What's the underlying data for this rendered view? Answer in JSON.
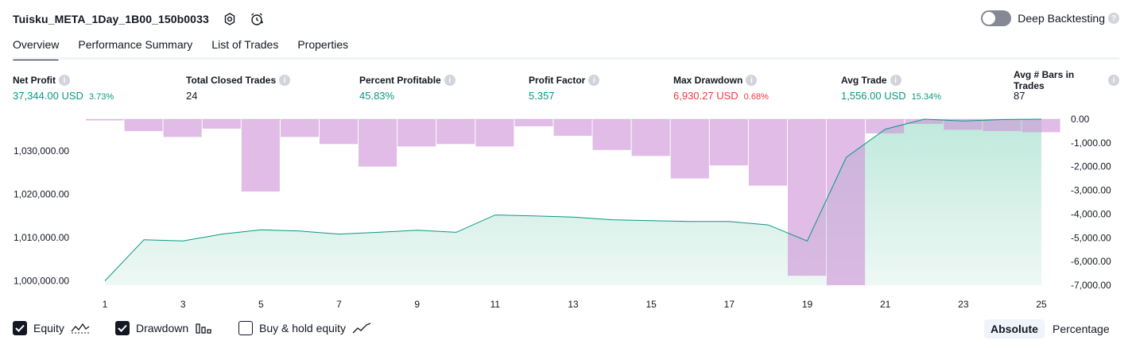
{
  "header": {
    "title": "Tuisku_META_1Day_1B00_150b0033",
    "deep_backtesting_label": "Deep Backtesting",
    "deep_backtesting_on": false
  },
  "tabs": [
    {
      "label": "Overview",
      "active": true
    },
    {
      "label": "Performance Summary",
      "active": false
    },
    {
      "label": "List of Trades",
      "active": false
    },
    {
      "label": "Properties",
      "active": false
    }
  ],
  "metrics": [
    {
      "label": "Net Profit",
      "value": "37,344.00 USD",
      "sub": "3.73%",
      "tone": "pos"
    },
    {
      "label": "Total Closed Trades",
      "value": "24",
      "sub": "",
      "tone": "neutral"
    },
    {
      "label": "Percent Profitable",
      "value": "45.83%",
      "sub": "",
      "tone": "pos"
    },
    {
      "label": "Profit Factor",
      "value": "5.357",
      "sub": "",
      "tone": "pos"
    },
    {
      "label": "Max Drawdown",
      "value": "6,930.27 USD",
      "sub": "0.68%",
      "tone": "neg"
    },
    {
      "label": "Avg Trade",
      "value": "1,556.00 USD",
      "sub": "15.34%",
      "tone": "pos"
    },
    {
      "label": "Avg # Bars in Trades",
      "value": "87",
      "sub": "",
      "tone": "neutral"
    }
  ],
  "chart_data": {
    "type": "area",
    "x": [
      1,
      2,
      3,
      4,
      5,
      6,
      7,
      8,
      9,
      10,
      11,
      12,
      13,
      14,
      15,
      16,
      17,
      18,
      19,
      20,
      21,
      22,
      23,
      24,
      25
    ],
    "x_tick_labels": [
      "1",
      "3",
      "5",
      "7",
      "9",
      "11",
      "13",
      "15",
      "17",
      "19",
      "21",
      "23",
      "25"
    ],
    "series": [
      {
        "axis": "left",
        "type": "area",
        "values": [
          1000000,
          1009500,
          1009200,
          1010800,
          1011800,
          1011500,
          1010800,
          1011200,
          1011700,
          1011200,
          1015200,
          1015000,
          1014700,
          1014100,
          1013900,
          1013700,
          1013700,
          1012900,
          1009200,
          1028500,
          1035000,
          1037300,
          1036900,
          1037200,
          1037300
        ],
        "color": "#089981"
      },
      {
        "axis": "right",
        "type": "bar",
        "values": [
          -50,
          -500,
          -750,
          -400,
          -3050,
          -750,
          -1050,
          -2000,
          -1150,
          -1050,
          -1150,
          -300,
          -700,
          -1300,
          -1550,
          -2500,
          -1950,
          -2800,
          -6600,
          -7000,
          -600,
          -200,
          -450,
          -500,
          -550
        ],
        "color": "#ce93d8"
      }
    ],
    "left_axis": {
      "ticks": [
        "1,000,000.00",
        "1,010,000.00",
        "1,020,000.00",
        "1,030,000.00"
      ],
      "ylim": [
        999000,
        1037300
      ]
    },
    "right_axis": {
      "ticks": [
        "0.00",
        "-1,000.00",
        "-2,000.00",
        "-3,000.00",
        "-4,000.00",
        "-5,000.00",
        "-6,000.00",
        "-7,000.00"
      ],
      "ylim": [
        -7000,
        0
      ]
    },
    "colors": {
      "equity_line": "#089981",
      "drawdown_bar": "#ce93d8",
      "drawdown_over_equity": "#b39ddb"
    }
  },
  "footer": {
    "checks": [
      {
        "label": "Equity",
        "checked": true,
        "glyph": "equity-icon"
      },
      {
        "label": "Drawdown",
        "checked": true,
        "glyph": "drawdown-icon"
      },
      {
        "label": "Buy & hold equity",
        "checked": false,
        "glyph": "buy-hold-icon"
      }
    ],
    "modes": [
      {
        "label": "Absolute",
        "active": true
      },
      {
        "label": "Percentage",
        "active": false
      }
    ]
  }
}
